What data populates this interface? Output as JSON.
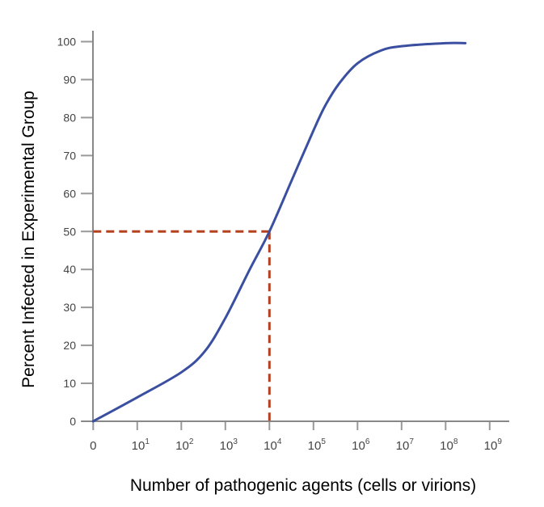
{
  "chart_data": {
    "type": "line",
    "title": "",
    "xlabel": "Number of pathogenic agents (cells or virions)",
    "ylabel": "Percent Infected in Experimental Group",
    "x_scale": "log (with 0 at origin)",
    "ylim": [
      0,
      100
    ],
    "y_ticks": [
      0,
      10,
      20,
      30,
      40,
      50,
      60,
      70,
      80,
      90,
      100
    ],
    "x_ticks": [
      {
        "base": "0",
        "exp": ""
      },
      {
        "base": "10",
        "exp": "1"
      },
      {
        "base": "10",
        "exp": "2"
      },
      {
        "base": "10",
        "exp": "3"
      },
      {
        "base": "10",
        "exp": "4"
      },
      {
        "base": "10",
        "exp": "5"
      },
      {
        "base": "10",
        "exp": "6"
      },
      {
        "base": "10",
        "exp": "7"
      },
      {
        "base": "10",
        "exp": "8"
      },
      {
        "base": "10",
        "exp": "9"
      }
    ],
    "grid": false,
    "series": [
      {
        "color": "#3a4fa0",
        "points": [
          [
            0,
            0
          ],
          [
            10,
            6.3
          ],
          [
            100,
            12.9
          ],
          [
            340,
            18.4
          ],
          [
            1000,
            27.2
          ],
          [
            3500,
            39.8
          ],
          [
            10000,
            50
          ],
          [
            31600,
            63.3
          ],
          [
            100000,
            76.6
          ],
          [
            186000,
            83.2
          ],
          [
            390000,
            89.1
          ],
          [
            1000000,
            94.3
          ],
          [
            3300000,
            97.6
          ],
          [
            10000000,
            98.8
          ],
          [
            100000000,
            99.6
          ],
          [
            280000000,
            99.6
          ]
        ]
      }
    ],
    "annotations": [
      {
        "type": "dashed-reference",
        "x": 10000,
        "y": 50,
        "color": "#b5401f"
      }
    ]
  }
}
